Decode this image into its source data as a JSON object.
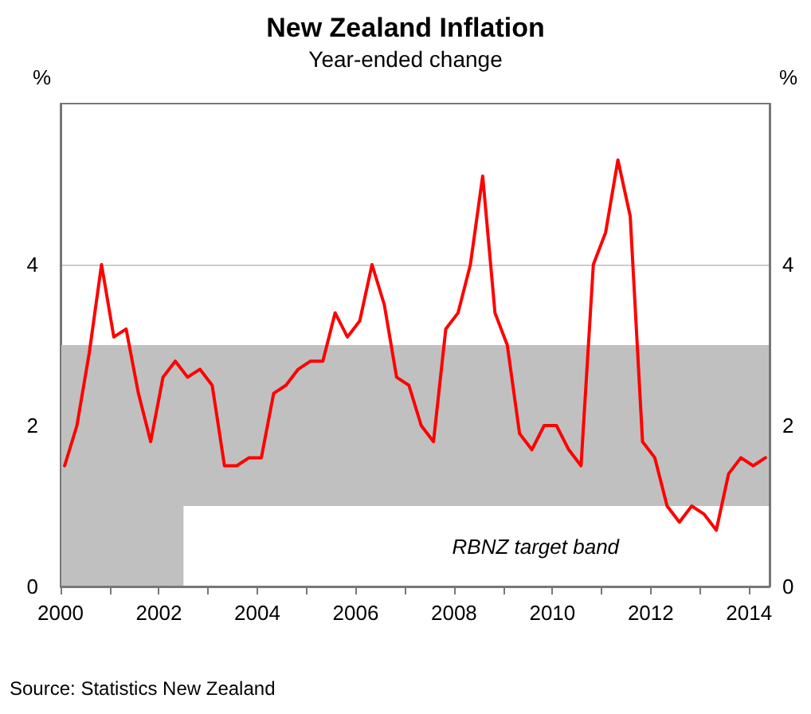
{
  "chart_data": {
    "type": "line",
    "title": "New Zealand Inflation",
    "subtitle": "Year-ended change",
    "ylabel": "%",
    "y2label": "%",
    "annotations": [
      "Source: Statistics New Zealand"
    ],
    "x": [
      "2000-02",
      "2000-05",
      "2000-08",
      "2000-11",
      "2001-02",
      "2001-05",
      "2001-08",
      "2001-11",
      "2002-02",
      "2002-05",
      "2002-08",
      "2002-11",
      "2003-02",
      "2003-05",
      "2003-08",
      "2003-11",
      "2004-02",
      "2004-05",
      "2004-08",
      "2004-11",
      "2005-02",
      "2005-05",
      "2005-08",
      "2005-11",
      "2006-02",
      "2006-05",
      "2006-08",
      "2006-11",
      "2007-02",
      "2007-05",
      "2007-08",
      "2007-11",
      "2008-02",
      "2008-05",
      "2008-08",
      "2008-11",
      "2009-02",
      "2009-05",
      "2009-08",
      "2009-11",
      "2010-02",
      "2010-05",
      "2010-08",
      "2010-11",
      "2011-02",
      "2011-05",
      "2011-08",
      "2011-11",
      "2012-02",
      "2012-05",
      "2012-08",
      "2012-11",
      "2013-02",
      "2013-05",
      "2013-08",
      "2013-11",
      "2014-02",
      "2014-05"
    ],
    "series": [
      {
        "color": "#ff0000",
        "values": [
          1.5,
          2.0,
          2.9,
          4.0,
          3.1,
          3.2,
          2.4,
          1.8,
          2.6,
          2.8,
          2.6,
          2.7,
          2.5,
          1.5,
          1.5,
          1.6,
          1.6,
          2.4,
          2.5,
          2.7,
          2.8,
          2.8,
          3.4,
          3.1,
          3.3,
          4.0,
          3.5,
          2.6,
          2.5,
          2.0,
          1.8,
          3.2,
          3.4,
          4.0,
          5.1,
          3.4,
          3.0,
          1.9,
          1.7,
          2.0,
          2.0,
          1.7,
          1.5,
          4.0,
          4.4,
          5.3,
          4.6,
          1.8,
          1.6,
          1.0,
          0.8,
          1.0,
          0.9,
          0.7,
          1.4,
          1.6,
          1.5,
          1.6
        ]
      }
    ],
    "xlim": [
      "2000-01",
      "2014-06"
    ],
    "xticks": [
      {
        "value": "2000",
        "label": "2000"
      },
      {
        "value": "2001",
        "label": null
      },
      {
        "value": "2002",
        "label": "2002"
      },
      {
        "value": "2003",
        "label": null
      },
      {
        "value": "2004",
        "label": "2004"
      },
      {
        "value": "2005",
        "label": null
      },
      {
        "value": "2006",
        "label": "2006"
      },
      {
        "value": "2007",
        "label": null
      },
      {
        "value": "2008",
        "label": "2008"
      },
      {
        "value": "2009",
        "label": null
      },
      {
        "value": "2010",
        "label": "2010"
      },
      {
        "value": "2011",
        "label": null
      },
      {
        "value": "2012",
        "label": "2012"
      },
      {
        "value": "2013",
        "label": null
      },
      {
        "value": "2014",
        "label": "2014"
      }
    ],
    "ylim": [
      0,
      6
    ],
    "yticks": [
      0,
      2,
      4
    ],
    "y2lim": [
      0,
      6
    ],
    "y2ticks": [
      0,
      2,
      4
    ],
    "bands": [
      {
        "axis": "y",
        "from": 1,
        "to": 3,
        "label": "RBNZ target band",
        "color": "#c0c0c0"
      },
      {
        "axis": "x",
        "from": "2000-01",
        "to": "2002-07",
        "color": "#c0c0c0"
      }
    ],
    "grid": "y",
    "marker": "none",
    "line_style": "solid"
  }
}
